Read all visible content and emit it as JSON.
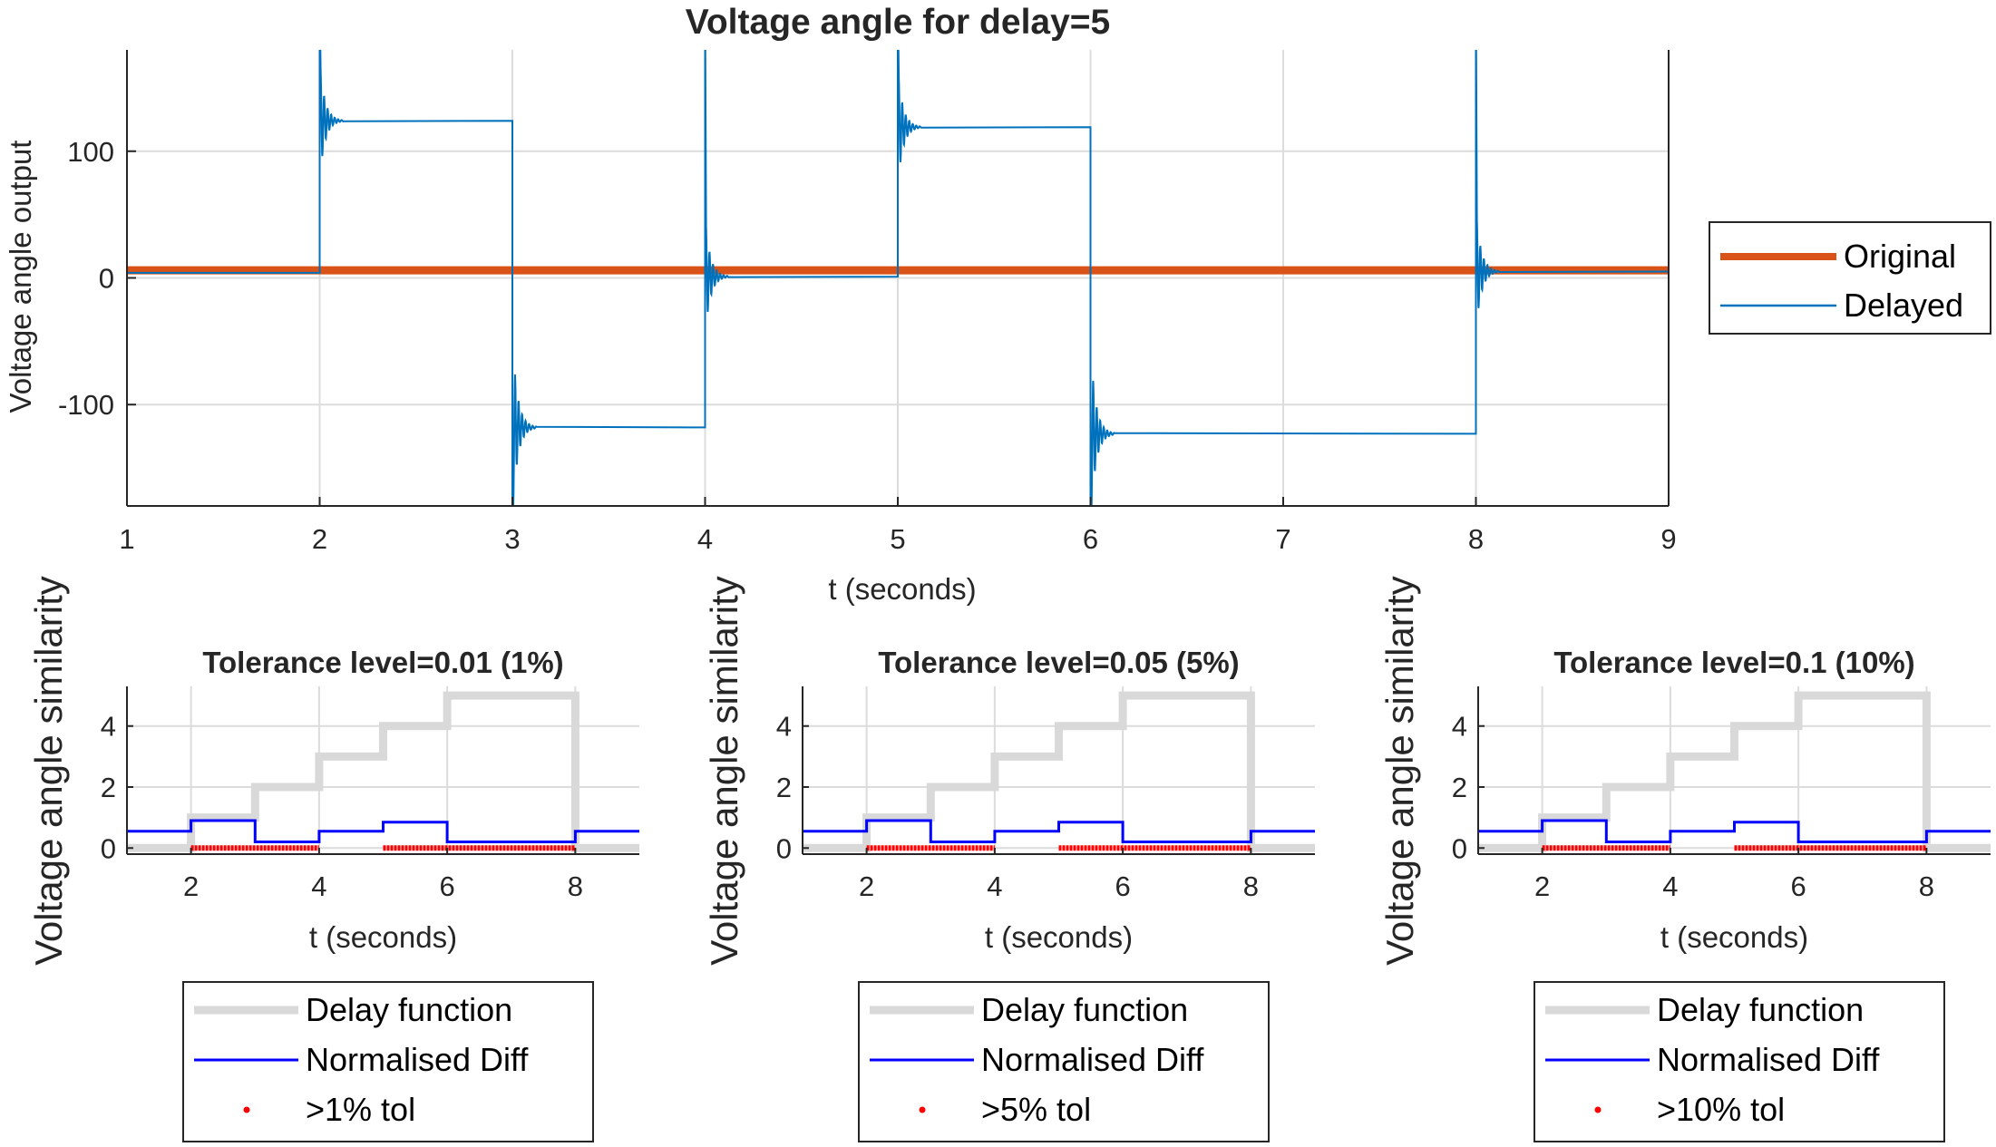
{
  "top": {
    "title": "Voltage angle for delay=5",
    "xlabel": "t (seconds)",
    "ylabel": "Voltage angle output",
    "x_ticks": [
      1,
      2,
      3,
      4,
      5,
      6,
      7,
      8,
      9
    ],
    "y_ticks": [
      -100,
      0,
      100
    ],
    "x_ticklabels": [
      "1",
      "2",
      "3",
      "4",
      "5",
      "6",
      "7",
      "8",
      "9"
    ],
    "y_ticklabels": [
      "-100",
      "0",
      "100"
    ],
    "legend": [
      "Original",
      "Delayed"
    ]
  },
  "bottom": {
    "ylabel": "Voltage angle similarity",
    "xlabel": "t (seconds)",
    "x_ticks": [
      2,
      4,
      6,
      8
    ],
    "x_ticklabels": [
      "2",
      "4",
      "6",
      "8"
    ],
    "y_ticks": [
      0,
      2,
      4
    ],
    "y_ticklabels": [
      "0",
      "2",
      "4"
    ],
    "panels": [
      {
        "title": "Tolerance level=0.01 (1%)",
        "legend": [
          "Delay function",
          "Normalised Diff",
          ">1% tol"
        ]
      },
      {
        "title": "Tolerance level=0.05 (5%)",
        "legend": [
          "Delay function",
          "Normalised Diff",
          ">5% tol"
        ]
      },
      {
        "title": "Tolerance level=0.1 (10%)",
        "legend": [
          "Delay function",
          "Normalised Diff",
          ">10% tol"
        ]
      }
    ]
  },
  "colors": {
    "original": "#D95319",
    "delayed": "#0072BD",
    "delay_function": "#D9D9D9",
    "normalised_diff": "#0000FF",
    "tolerance": "#FF0000"
  },
  "chart_data": [
    {
      "type": "line",
      "title": "Voltage angle for delay=5",
      "xlabel": "t (seconds)",
      "ylabel": "Voltage angle output",
      "xlim": [
        1,
        9
      ],
      "ylim": [
        -180,
        180
      ],
      "grid": true,
      "legend_position": "right",
      "series": [
        {
          "name": "Original",
          "x": [
            1,
            9
          ],
          "y": [
            6,
            6
          ]
        },
        {
          "name": "Delayed",
          "segments": [
            {
              "x_start": 1,
              "x_end": 2,
              "level": 4
            },
            {
              "x_start": 2,
              "x_end": 3,
              "level": 124
            },
            {
              "x_start": 3,
              "x_end": 4,
              "level": -118
            },
            {
              "x_start": 4,
              "x_end": 5,
              "level": 1
            },
            {
              "x_start": 5,
              "x_end": 6,
              "level": 119
            },
            {
              "x_start": 6,
              "x_end": 8,
              "level": -123
            },
            {
              "x_start": 8,
              "x_end": 9,
              "level": 5
            }
          ]
        }
      ]
    },
    {
      "type": "line",
      "title": "Tolerance level=0.01 (1%)",
      "xlabel": "t (seconds)",
      "ylabel": "Voltage angle similarity",
      "xlim": [
        1,
        9
      ],
      "ylim": [
        -0.2,
        5.3
      ],
      "grid": true,
      "legend_position": "below",
      "series": [
        {
          "name": "Delay function",
          "x": [
            1,
            2,
            2,
            3,
            3,
            4,
            4,
            5,
            5,
            6,
            6,
            8,
            8,
            9
          ],
          "y": [
            0,
            0,
            1,
            1,
            2,
            2,
            3,
            3,
            4,
            4,
            5,
            5,
            0,
            0
          ]
        },
        {
          "name": "Normalised Diff",
          "x": [
            1,
            2,
            2,
            3,
            3,
            4,
            4,
            5,
            5,
            6,
            6,
            8,
            8,
            9
          ],
          "y": [
            0.55,
            0.55,
            0.9,
            0.9,
            0.2,
            0.2,
            0.55,
            0.55,
            0.85,
            0.85,
            0.2,
            0.2,
            0.55,
            0.55
          ]
        },
        {
          "name": ">1% tol",
          "intervals": [
            [
              2,
              4
            ],
            [
              5,
              8
            ]
          ],
          "y": 0
        }
      ]
    },
    {
      "type": "line",
      "title": "Tolerance level=0.05 (5%)",
      "xlabel": "t (seconds)",
      "ylabel": "Voltage angle similarity",
      "xlim": [
        1,
        9
      ],
      "ylim": [
        -0.2,
        5.3
      ],
      "grid": true,
      "legend_position": "below",
      "series": [
        {
          "name": "Delay function",
          "x": [
            1,
            2,
            2,
            3,
            3,
            4,
            4,
            5,
            5,
            6,
            6,
            8,
            8,
            9
          ],
          "y": [
            0,
            0,
            1,
            1,
            2,
            2,
            3,
            3,
            4,
            4,
            5,
            5,
            0,
            0
          ]
        },
        {
          "name": "Normalised Diff",
          "x": [
            1,
            2,
            2,
            3,
            3,
            4,
            4,
            5,
            5,
            6,
            6,
            8,
            8,
            9
          ],
          "y": [
            0.55,
            0.55,
            0.9,
            0.9,
            0.2,
            0.2,
            0.55,
            0.55,
            0.85,
            0.85,
            0.2,
            0.2,
            0.55,
            0.55
          ]
        },
        {
          "name": ">5% tol",
          "intervals": [
            [
              2,
              4
            ],
            [
              5,
              8
            ]
          ],
          "y": 0
        }
      ]
    },
    {
      "type": "line",
      "title": "Tolerance level=0.1 (10%)",
      "xlabel": "t (seconds)",
      "ylabel": "Voltage angle similarity",
      "xlim": [
        1,
        9
      ],
      "ylim": [
        -0.2,
        5.3
      ],
      "grid": true,
      "legend_position": "below",
      "series": [
        {
          "name": "Delay function",
          "x": [
            1,
            2,
            2,
            3,
            3,
            4,
            4,
            5,
            5,
            6,
            6,
            8,
            8,
            9
          ],
          "y": [
            0,
            0,
            1,
            1,
            2,
            2,
            3,
            3,
            4,
            4,
            5,
            5,
            0,
            0
          ]
        },
        {
          "name": "Normalised Diff",
          "x": [
            1,
            2,
            2,
            3,
            3,
            4,
            4,
            5,
            5,
            6,
            6,
            8,
            8,
            9
          ],
          "y": [
            0.55,
            0.55,
            0.9,
            0.9,
            0.2,
            0.2,
            0.55,
            0.55,
            0.85,
            0.85,
            0.2,
            0.2,
            0.55,
            0.55
          ]
        },
        {
          "name": ">10% tol",
          "intervals": [
            [
              2,
              4
            ],
            [
              5,
              8
            ]
          ],
          "y": 0
        }
      ]
    }
  ]
}
